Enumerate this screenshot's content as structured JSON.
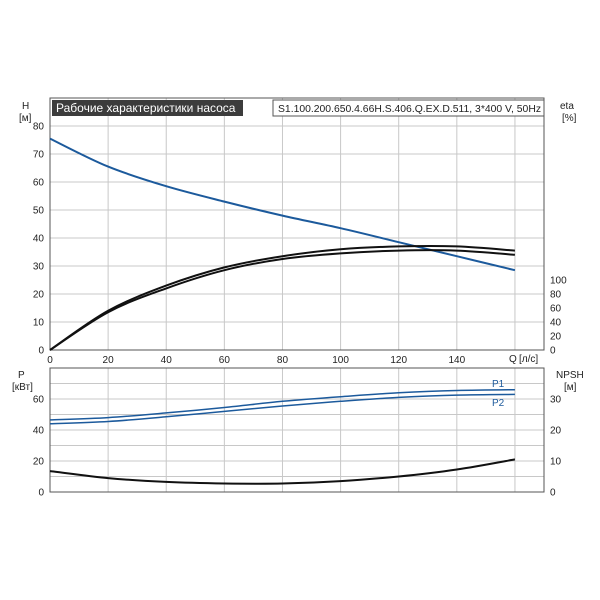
{
  "header": {
    "title": "Рабочие характеристики насоса",
    "model": "S1.100.200.650.4.66H.S.406.Q.EX.D.511, 3*400 V, 50Hz"
  },
  "colors": {
    "accent": "#1c5a9c",
    "title_bg": "#3c3c3c",
    "curve_black": "#111111",
    "grid": "#c8c8c8"
  },
  "chart_data": [
    {
      "id": "head-efficiency",
      "type": "line",
      "x_axis": {
        "label": "Q",
        "unit": "[л/с]",
        "ticks": [
          0,
          20,
          40,
          60,
          80,
          100,
          120,
          140
        ],
        "range": [
          0,
          170
        ]
      },
      "y_left": {
        "label": "H",
        "unit": "[м]",
        "ticks": [
          0,
          10,
          20,
          30,
          40,
          50,
          60,
          70,
          80
        ],
        "range": [
          0,
          90
        ]
      },
      "y_right": {
        "label": "eta",
        "unit": "[%]",
        "ticks": [
          0,
          20,
          40,
          60,
          80,
          100
        ]
      },
      "grid": true,
      "series": [
        {
          "axis": "left",
          "color": "#1c5a9c",
          "x": [
            0,
            20,
            40,
            60,
            80,
            100,
            120,
            140,
            160
          ],
          "y": [
            75.5,
            65.5,
            58.5,
            53,
            48,
            43.5,
            38.5,
            33.5,
            28.5
          ]
        },
        {
          "axis": "left",
          "color": "#111111",
          "x": [
            0,
            20,
            40,
            60,
            80,
            100,
            120,
            140,
            160
          ],
          "y": [
            0,
            14,
            23,
            29.5,
            33.5,
            36,
            37,
            37,
            35.5
          ]
        },
        {
          "axis": "left",
          "color": "#111111",
          "x": [
            0,
            20,
            40,
            60,
            80,
            100,
            120,
            140,
            160
          ],
          "y": [
            0,
            13.5,
            22,
            28.5,
            32.5,
            34.5,
            35.5,
            35.5,
            34
          ]
        }
      ]
    },
    {
      "id": "power-npsh",
      "type": "line",
      "x_axis": {
        "ticks": [],
        "range": [
          0,
          170
        ]
      },
      "y_left": {
        "label": "P",
        "unit": "[кВт]",
        "ticks": [
          0,
          20,
          40,
          60
        ],
        "range": [
          0,
          80
        ]
      },
      "y_right": {
        "label": "NPSH",
        "unit": "[м]",
        "ticks": [
          0,
          10,
          20,
          30
        ]
      },
      "grid": true,
      "series": [
        {
          "name": "P1",
          "axis": "left",
          "color": "#1c5a9c",
          "x": [
            0,
            20,
            40,
            60,
            80,
            100,
            120,
            140,
            160
          ],
          "y": [
            46.5,
            48,
            51,
            54.5,
            58.5,
            61.5,
            64,
            65.5,
            66
          ]
        },
        {
          "name": "P2",
          "axis": "left",
          "color": "#1c5a9c",
          "x": [
            0,
            20,
            40,
            60,
            80,
            100,
            120,
            140,
            160
          ],
          "y": [
            44,
            45.5,
            48.5,
            52,
            55.5,
            58.5,
            61,
            62.5,
            63
          ]
        },
        {
          "axis": "left",
          "color": "#111111",
          "x": [
            0,
            20,
            40,
            60,
            80,
            100,
            120,
            140,
            160
          ],
          "y": [
            13.5,
            9,
            6.5,
            5.5,
            5.5,
            7,
            10,
            14.5,
            21
          ]
        }
      ]
    }
  ]
}
